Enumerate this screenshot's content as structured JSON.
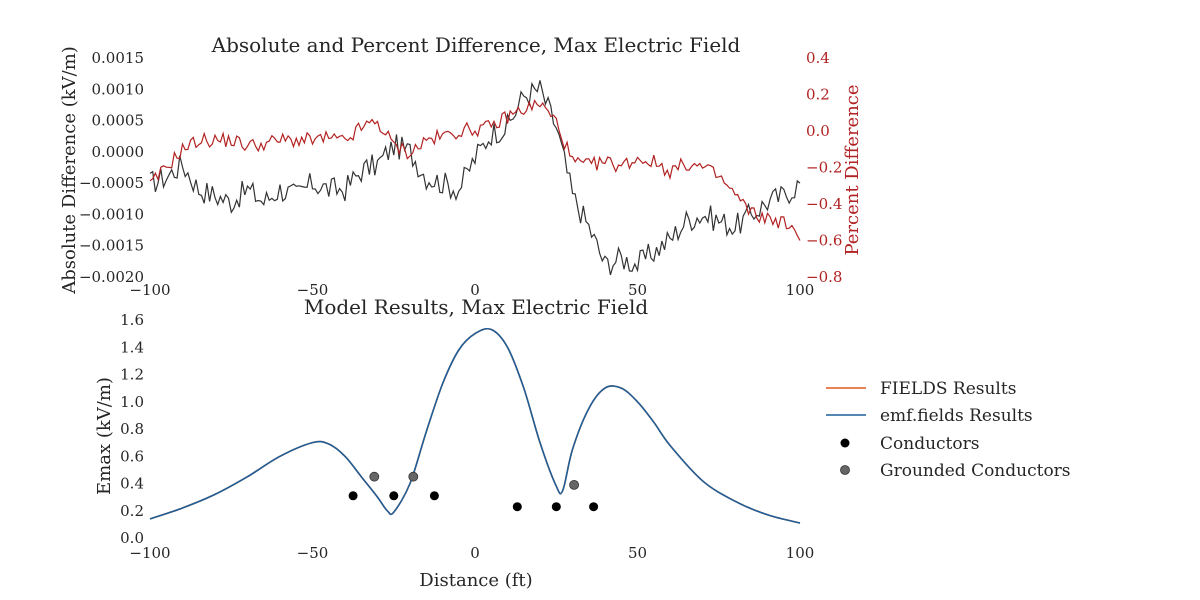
{
  "chart_data": [
    {
      "type": "line",
      "title": "Absolute and Percent Difference, Max Electric Field",
      "xlabel": "",
      "ylabel": "Absolute Difference (kV/m)",
      "y2label": "Percent Difference",
      "xlim": [
        -100,
        100
      ],
      "ylim": [
        -0.002,
        0.0015
      ],
      "y2lim": [
        -0.8,
        0.4
      ],
      "xticks": [
        "−100",
        "−50",
        "0",
        "50",
        "100"
      ],
      "xtick_values": [
        -100,
        -50,
        0,
        50,
        100
      ],
      "yticks": [
        "−0.0020",
        "−0.0015",
        "−0.0010",
        "−0.0005",
        "0.0000",
        "0.0005",
        "0.0010",
        "0.0015"
      ],
      "ytick_values": [
        -0.002,
        -0.0015,
        -0.001,
        -0.0005,
        0,
        0.0005,
        0.001,
        0.0015
      ],
      "y2ticks": [
        "−0.8",
        "−0.6",
        "−0.4",
        "−0.2",
        "0.0",
        "0.2",
        "0.4"
      ],
      "y2tick_values": [
        -0.8,
        -0.6,
        -0.4,
        -0.2,
        0.0,
        0.2,
        0.4
      ],
      "grid": false,
      "series": [
        {
          "axis": "left",
          "color": "#333333",
          "x": [
            -100,
            -95,
            -90,
            -85,
            -80,
            -75,
            -70,
            -65,
            -60,
            -55,
            -50,
            -45,
            -40,
            -35,
            -30,
            -25,
            -20,
            -15,
            -10,
            -5,
            0,
            5,
            10,
            15,
            20,
            25,
            30,
            35,
            40,
            45,
            50,
            55,
            60,
            65,
            70,
            75,
            80,
            85,
            90,
            95,
            100
          ],
          "y": [
            -0.0005,
            -0.0004,
            -0.0002,
            -0.0006,
            -0.0007,
            -0.0008,
            -0.0006,
            -0.0008,
            -0.0006,
            -0.0007,
            -0.0005,
            -0.0006,
            -0.0006,
            -0.0003,
            -0.0002,
            0.0001,
            0.0,
            -0.0004,
            -0.0005,
            -0.0006,
            -0.0001,
            0.0003,
            0.0004,
            0.0009,
            0.001,
            0.0004,
            -0.0007,
            -0.0012,
            -0.0018,
            -0.0017,
            -0.0018,
            -0.0016,
            -0.0014,
            -0.0011,
            -0.001,
            -0.0011,
            -0.0012,
            -0.001,
            -0.0008,
            -0.0007,
            -0.0005
          ]
        },
        {
          "axis": "right",
          "color": "#b22222",
          "x": [
            -100,
            -95,
            -90,
            -85,
            -80,
            -75,
            -70,
            -65,
            -60,
            -55,
            -50,
            -45,
            -40,
            -35,
            -30,
            -25,
            -20,
            -15,
            -10,
            -5,
            0,
            5,
            10,
            15,
            20,
            25,
            30,
            35,
            40,
            45,
            50,
            55,
            60,
            65,
            70,
            75,
            80,
            85,
            90,
            95,
            100
          ],
          "y": [
            -0.3,
            -0.2,
            -0.1,
            -0.05,
            -0.05,
            -0.05,
            -0.08,
            -0.07,
            -0.05,
            -0.05,
            -0.05,
            -0.04,
            -0.06,
            0.02,
            0.05,
            -0.08,
            -0.12,
            -0.05,
            -0.03,
            0.0,
            0.01,
            0.02,
            0.08,
            0.12,
            0.15,
            0.05,
            -0.17,
            -0.19,
            -0.17,
            -0.19,
            -0.15,
            -0.17,
            -0.22,
            -0.18,
            -0.2,
            -0.25,
            -0.35,
            -0.45,
            -0.48,
            -0.5,
            -0.6
          ]
        }
      ]
    },
    {
      "type": "line",
      "title": "Model Results, Max Electric Field",
      "xlabel": "Distance (ft)",
      "ylabel": "Emax (kV/m)",
      "xlim": [
        -100,
        100
      ],
      "ylim": [
        0,
        1.6
      ],
      "xticks": [
        "−100",
        "−50",
        "0",
        "50",
        "100"
      ],
      "xtick_values": [
        -100,
        -50,
        0,
        50,
        100
      ],
      "yticks": [
        "0.0",
        "0.2",
        "0.4",
        "0.6",
        "0.8",
        "1.0",
        "1.2",
        "1.4",
        "1.6"
      ],
      "ytick_values": [
        0,
        0.2,
        0.4,
        0.6,
        0.8,
        1.0,
        1.2,
        1.4,
        1.6
      ],
      "grid": false,
      "legend_position": "right",
      "series": [
        {
          "name": "FIELDS Results",
          "color": "#e25a1c",
          "x": [
            -100,
            -90,
            -80,
            -70,
            -60,
            -50,
            -45,
            -40,
            -35,
            -30,
            -27,
            -25,
            -20,
            -15,
            -10,
            -5,
            0,
            5,
            10,
            15,
            20,
            25,
            27,
            30,
            35,
            40,
            45,
            50,
            55,
            60,
            70,
            80,
            90,
            100
          ],
          "y": [
            0.14,
            0.22,
            0.32,
            0.45,
            0.6,
            0.7,
            0.69,
            0.6,
            0.45,
            0.3,
            0.2,
            0.19,
            0.4,
            0.78,
            1.13,
            1.38,
            1.5,
            1.53,
            1.4,
            1.1,
            0.7,
            0.38,
            0.35,
            0.65,
            0.95,
            1.1,
            1.1,
            1.0,
            0.85,
            0.68,
            0.42,
            0.27,
            0.17,
            0.11
          ]
        },
        {
          "name": "emf.fields Results",
          "color": "#1f5f99",
          "x": [
            -100,
            -90,
            -80,
            -70,
            -60,
            -50,
            -45,
            -40,
            -35,
            -30,
            -27,
            -25,
            -20,
            -15,
            -10,
            -5,
            0,
            5,
            10,
            15,
            20,
            25,
            27,
            30,
            35,
            40,
            45,
            50,
            55,
            60,
            70,
            80,
            90,
            100
          ],
          "y": [
            0.14,
            0.22,
            0.32,
            0.45,
            0.6,
            0.7,
            0.69,
            0.6,
            0.45,
            0.3,
            0.2,
            0.19,
            0.4,
            0.78,
            1.13,
            1.38,
            1.5,
            1.53,
            1.4,
            1.1,
            0.7,
            0.38,
            0.35,
            0.65,
            0.95,
            1.1,
            1.1,
            1.0,
            0.85,
            0.68,
            0.42,
            0.27,
            0.17,
            0.11
          ]
        },
        {
          "name": "Conductors",
          "type": "scatter",
          "color": "#000000",
          "x": [
            -37.5,
            -25,
            -12.5,
            13,
            25,
            36.5
          ],
          "y": [
            0.31,
            0.31,
            0.31,
            0.23,
            0.23,
            0.23
          ]
        },
        {
          "name": "Grounded Conductors",
          "type": "scatter",
          "color": "#666666",
          "x": [
            -31,
            -19,
            30.5
          ],
          "y": [
            0.45,
            0.45,
            0.39
          ]
        }
      ]
    }
  ]
}
